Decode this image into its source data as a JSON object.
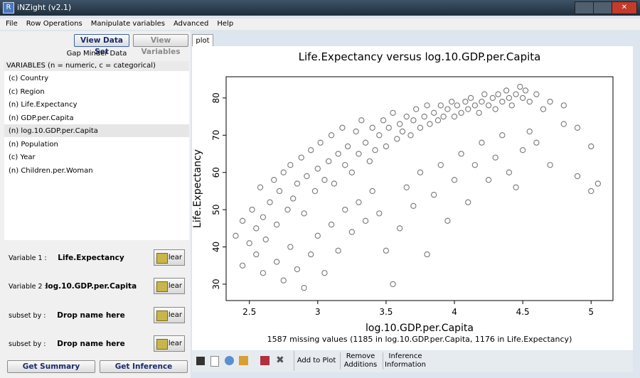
{
  "window": {
    "title": "iNZight (v2.1)"
  },
  "menu": [
    "File",
    "Row Operations",
    "Manipulate variables",
    "Advanced",
    "Help"
  ],
  "left_panel": {
    "buttons": [
      "View Data Set",
      "View Variables"
    ],
    "dataset_name": "Gap Minder Data",
    "variables_header": "VARIABLES (n = numeric, c = categorical)",
    "variables": [
      "(c) Country",
      "(c) Region",
      "(n) Life.Expectancy",
      "(n) GDP.per.Capita",
      "(n) log.10.GDP.per.Capita",
      "(n) Population",
      "(c) Year",
      "(n) Children.per.Woman"
    ],
    "controls": [
      {
        "label": "Variable 1 :",
        "value": "Life.Expectancy",
        "button": "clear"
      },
      {
        "label": "Variable 2 :",
        "value": "log.10.GDP.per.Capita",
        "button": "clear"
      },
      {
        "label": "subset by :",
        "value": "Drop name here",
        "button": "clear"
      },
      {
        "label": "subset by :",
        "value": "Drop name here",
        "button": "clear"
      }
    ],
    "actions": [
      "Get Summary",
      "Get Inference"
    ]
  },
  "tab": "plot",
  "toolbar": [
    "Add to Plot",
    "Remove Additions",
    "Inference Information"
  ],
  "chart_data": {
    "type": "scatter",
    "title": "Life.Expectancy versus log.10.GDP.per.Capita",
    "x_label": "log.10.GDP.per.Capita",
    "y_label": "Life.Expectancy",
    "note": "1587 missing values (1185 in log.10.GDP.per.Capita, 1176 in Life.Expectancy)",
    "color": "#777777",
    "xlim": [
      2.33,
      5.16
    ],
    "ylim": [
      25.6,
      85.7
    ],
    "xticks": [
      2.5,
      3,
      3.5,
      4,
      4.5,
      5
    ],
    "yticks": [
      30,
      40,
      50,
      60,
      70,
      80
    ],
    "x": [
      2.4,
      2.45,
      2.5,
      2.52,
      2.55,
      2.58,
      2.6,
      2.62,
      2.65,
      2.68,
      2.7,
      2.72,
      2.75,
      2.78,
      2.8,
      2.82,
      2.85,
      2.88,
      2.9,
      2.92,
      2.95,
      2.98,
      3.0,
      3.02,
      3.05,
      3.08,
      3.1,
      3.12,
      3.15,
      3.18,
      3.2,
      3.22,
      3.25,
      3.28,
      3.3,
      3.32,
      3.35,
      3.38,
      3.4,
      3.42,
      3.45,
      3.48,
      3.5,
      3.52,
      3.55,
      3.58,
      3.6,
      3.62,
      3.65,
      3.68,
      3.7,
      3.72,
      3.75,
      3.78,
      3.8,
      3.82,
      3.85,
      3.88,
      3.9,
      3.92,
      3.95,
      3.98,
      4.0,
      4.02,
      4.05,
      4.08,
      4.1,
      4.12,
      4.15,
      4.18,
      4.2,
      4.22,
      4.25,
      4.28,
      4.3,
      4.32,
      4.35,
      4.38,
      4.4,
      4.42,
      4.45,
      4.48,
      4.5,
      4.52,
      4.55,
      4.6,
      4.65,
      4.7,
      4.8,
      4.9,
      5.0,
      5.05,
      2.45,
      2.55,
      2.6,
      2.7,
      2.75,
      2.8,
      2.85,
      2.9,
      2.95,
      3.0,
      3.05,
      3.1,
      3.15,
      3.2,
      3.25,
      3.3,
      3.35,
      3.4,
      3.45,
      3.5,
      3.55,
      3.6,
      3.65,
      3.7,
      3.75,
      3.8,
      3.85,
      3.9,
      3.95,
      4.0,
      4.05,
      4.1,
      4.15,
      4.2,
      4.25,
      4.3,
      4.35,
      4.4,
      4.45,
      4.5,
      4.55,
      4.6,
      4.7,
      4.8,
      4.9,
      5.0
    ],
    "values": [
      43,
      47,
      41,
      50,
      45,
      56,
      48,
      42,
      52,
      58,
      46,
      55,
      60,
      50,
      62,
      53,
      57,
      64,
      49,
      59,
      66,
      55,
      61,
      68,
      58,
      63,
      70,
      57,
      65,
      72,
      62,
      67,
      60,
      71,
      65,
      74,
      68,
      63,
      72,
      66,
      70,
      74,
      67,
      72,
      76,
      69,
      73,
      71,
      75,
      70,
      74,
      77,
      72,
      75,
      78,
      73,
      76,
      74,
      78,
      75,
      77,
      79,
      75,
      78,
      76,
      79,
      77,
      80,
      78,
      76,
      79,
      81,
      78,
      80,
      77,
      81,
      79,
      82,
      80,
      78,
      81,
      83,
      80,
      82,
      79,
      81,
      77,
      79,
      78,
      72,
      67,
      57,
      35,
      38,
      33,
      36,
      31,
      40,
      34,
      29,
      38,
      43,
      33,
      46,
      39,
      50,
      44,
      52,
      47,
      55,
      49,
      39,
      30,
      45,
      56,
      51,
      60,
      38,
      54,
      62,
      47,
      58,
      65,
      52,
      62,
      68,
      58,
      64,
      70,
      60,
      56,
      66,
      71,
      68,
      62,
      73,
      59,
      55
    ]
  }
}
